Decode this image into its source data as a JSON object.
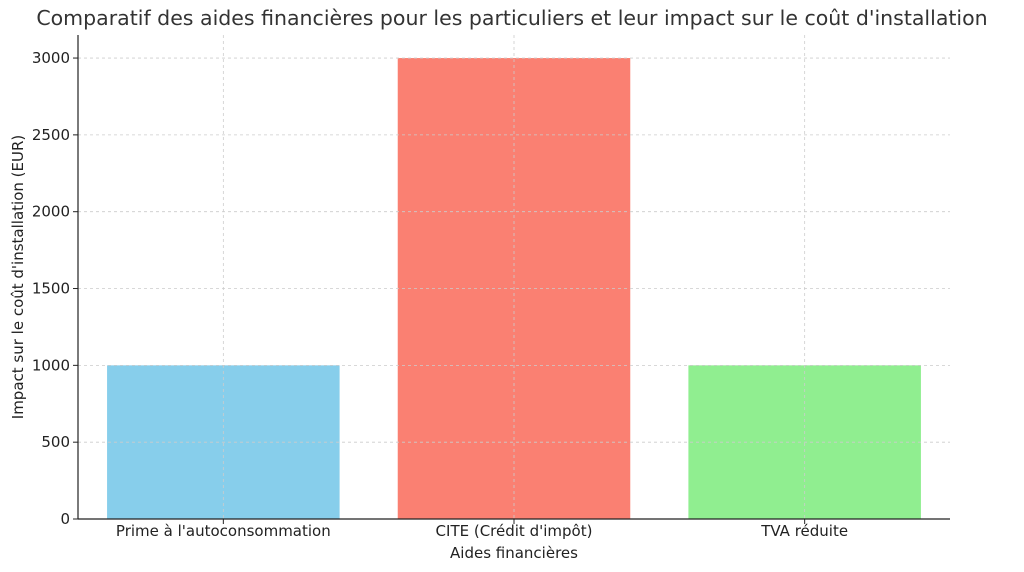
{
  "chart_data": {
    "type": "bar",
    "title": "Comparatif des aides financières pour les particuliers et leur impact sur le coût d'installation",
    "xlabel": "Aides financières",
    "ylabel": "Impact sur le coût d'installation (EUR)",
    "categories": [
      "Prime à l'autoconsommation",
      "CITE (Crédit d'impôt)",
      "TVA réduite"
    ],
    "values": [
      1000,
      3000,
      1000
    ],
    "colors": [
      "#87ceeb",
      "#fa8072",
      "#90ee90"
    ],
    "ylim": [
      0,
      3150
    ],
    "yticks": [
      0,
      500,
      1000,
      1500,
      2000,
      2500,
      3000
    ],
    "grid": true,
    "legend": "none"
  }
}
